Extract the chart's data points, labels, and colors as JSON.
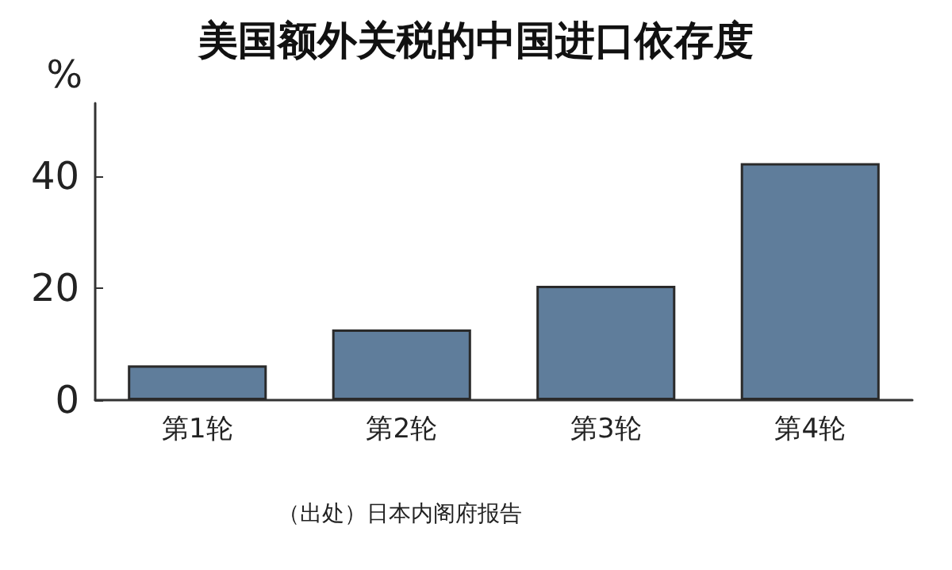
{
  "chart_data": {
    "type": "bar",
    "title": "美国额外关税的中国进口依存度",
    "ylabel": "%",
    "categories": [
      "第1轮",
      "第2轮",
      "第3轮",
      "第4轮"
    ],
    "values": [
      6.2,
      12.6,
      20.4,
      42.3
    ],
    "color": "#5f7d9b",
    "ylim": [
      0,
      53
    ],
    "yticks": [
      0,
      20,
      40
    ],
    "grid": false,
    "annotations": [
      "（出处）日本内阁府报告"
    ]
  }
}
